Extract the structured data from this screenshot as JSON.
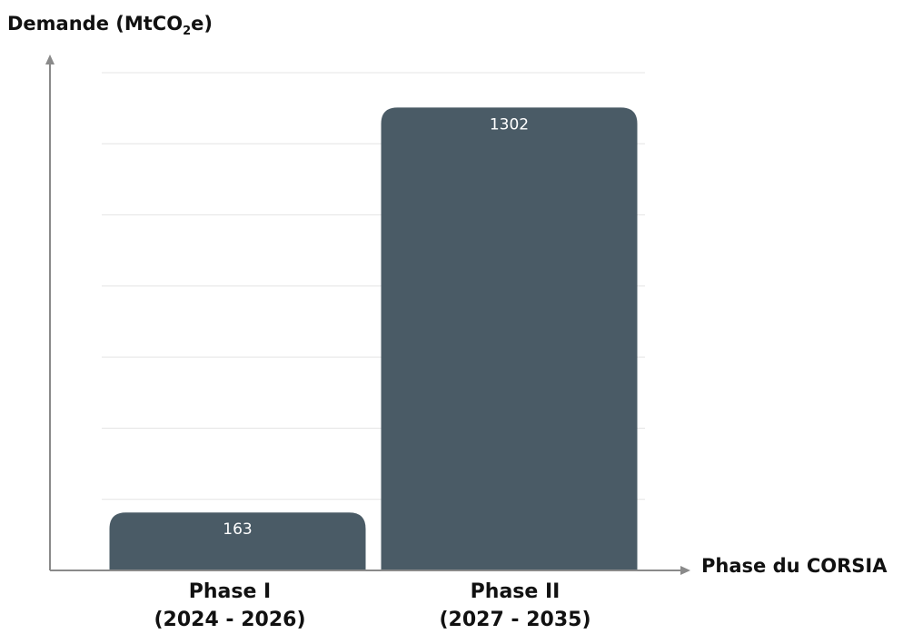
{
  "chart_data": {
    "type": "bar",
    "ylabel_prefix": "Demande (MtCO",
    "ylabel_sub": "2",
    "ylabel_suffix": "e)",
    "xlabel": "Phase du CORSIA",
    "categories": [
      {
        "line1": "Phase I",
        "line2": "(2024 - 2026)"
      },
      {
        "line1": "Phase II",
        "line2": "(2027 - 2035)"
      }
    ],
    "values": [
      163,
      1302
    ],
    "data_labels": [
      "163",
      "1302"
    ],
    "ylim": [
      0,
      1400
    ],
    "grid": true,
    "bar_color": "#4a5b66",
    "grid_color": "#e4e4e4",
    "axis_color": "#8a8a8a"
  }
}
